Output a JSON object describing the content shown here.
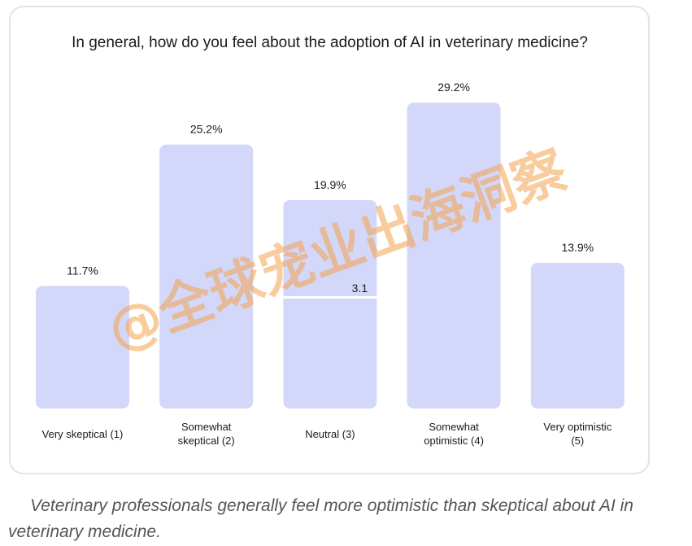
{
  "chart_data": {
    "type": "bar",
    "title": "In general, how do you feel about the adoption of AI in veterinary medicine?",
    "categories": [
      [
        "Very skeptical (1)"
      ],
      [
        "Somewhat",
        "skeptical (2)"
      ],
      [
        "Neutral (3)"
      ],
      [
        "Somewhat",
        "optimistic (4)"
      ],
      [
        "Very optimistic",
        "(5)"
      ]
    ],
    "values": [
      11.7,
      25.2,
      19.9,
      29.2,
      13.9
    ],
    "value_labels": [
      "11.7%",
      "25.2%",
      "19.9%",
      "29.2%",
      "13.9%"
    ],
    "annotation": "3.1",
    "ylim": [
      0,
      30
    ],
    "grid": false,
    "bar_color": "#d3d8fb"
  },
  "caption": "Veterinary professionals generally feel more optimistic than skeptical about AI in veterinary medicine.",
  "watermark": "@全球宠业出海洞察"
}
